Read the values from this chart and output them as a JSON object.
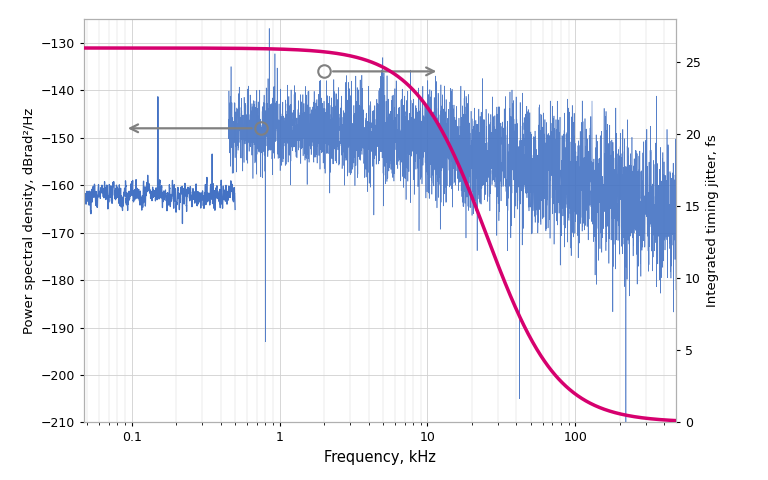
{
  "xlabel": "Frequency, kHz",
  "ylabel_left": "Power spectral density, dBrad²/Hz",
  "ylabel_right": "Integrated timing jitter, fs",
  "ylim_left": [
    -210,
    -125
  ],
  "ylim_right": [
    0,
    28
  ],
  "yticks_left": [
    -210,
    -200,
    -190,
    -180,
    -170,
    -160,
    -150,
    -140,
    -130
  ],
  "yticks_right": [
    0,
    5,
    10,
    15,
    20,
    25
  ],
  "psd_color": "#4472C4",
  "jitter_color": "#D6006E",
  "arrow_color": "#808080",
  "grid_color": "#d0d0d0",
  "background_color": "#ffffff",
  "fig_facecolor": "#f8f8f8"
}
